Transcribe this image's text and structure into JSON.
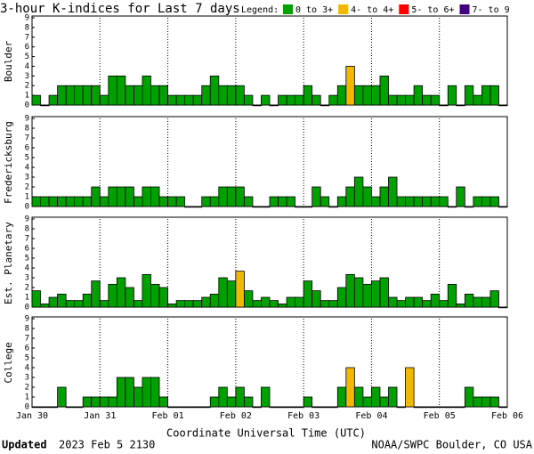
{
  "title": "3-hour K-indices for Last 7 days",
  "legend": {
    "title": "Legend:",
    "items": [
      {
        "label": "0 to 3+",
        "color": "#00a000"
      },
      {
        "label": "4- to 4+",
        "color": "#f0b800"
      },
      {
        "label": "5- to 6+",
        "color": "#ff0000"
      },
      {
        "label": "7- to 9",
        "color": "#400080"
      }
    ]
  },
  "x_axis": {
    "label": "Coordinate Universal Time (UTC)",
    "ticks": [
      "Jan 30",
      "Jan 31",
      "Feb 01",
      "Feb 02",
      "Feb 03",
      "Feb 04",
      "Feb 05",
      "Feb 06"
    ]
  },
  "footer": {
    "updated_label": "Updated",
    "updated_time": "2023 Feb  5 2130",
    "source": "NOAA/SWPC Boulder, CO USA"
  },
  "chart_data": [
    {
      "type": "bar",
      "ylabel": "Boulder",
      "ylim": [
        0,
        9
      ],
      "yticks": [
        0,
        1,
        2,
        3,
        4,
        5,
        6,
        7,
        8,
        9
      ],
      "values": [
        1,
        0,
        1,
        2,
        2,
        2,
        2,
        2,
        1,
        3,
        3,
        2,
        2,
        3,
        2,
        2,
        1,
        1,
        1,
        1,
        2,
        3,
        2,
        2,
        2,
        1,
        0,
        1,
        0,
        1,
        1,
        1,
        2,
        1,
        0,
        1,
        2,
        4,
        2,
        2,
        2,
        3,
        1,
        1,
        1,
        2,
        1,
        1,
        0,
        2,
        0,
        2,
        1,
        2,
        2,
        0
      ],
      "colors": [
        "#00a000",
        "#00a000",
        "#00a000",
        "#00a000",
        "#00a000",
        "#00a000",
        "#00a000",
        "#00a000",
        "#00a000",
        "#00a000",
        "#00a000",
        "#00a000",
        "#00a000",
        "#00a000",
        "#00a000",
        "#00a000",
        "#00a000",
        "#00a000",
        "#00a000",
        "#00a000",
        "#00a000",
        "#00a000",
        "#00a000",
        "#00a000",
        "#00a000",
        "#00a000",
        "#00a000",
        "#00a000",
        "#00a000",
        "#00a000",
        "#00a000",
        "#00a000",
        "#00a000",
        "#00a000",
        "#00a000",
        "#00a000",
        "#00a000",
        "#f0b800",
        "#00a000",
        "#00a000",
        "#00a000",
        "#00a000",
        "#00a000",
        "#00a000",
        "#00a000",
        "#00a000",
        "#00a000",
        "#00a000",
        "#00a000",
        "#00a000",
        "#00a000",
        "#00a000",
        "#00a000",
        "#00a000",
        "#00a000",
        "#00a000"
      ]
    },
    {
      "type": "bar",
      "ylabel": "Fredericksburg",
      "ylim": [
        0,
        9
      ],
      "yticks": [
        0,
        1,
        2,
        3,
        4,
        5,
        6,
        7,
        8,
        9
      ],
      "values": [
        1,
        1,
        1,
        1,
        1,
        1,
        1,
        2,
        1,
        2,
        2,
        2,
        1,
        2,
        2,
        1,
        1,
        1,
        0,
        0,
        1,
        1,
        2,
        2,
        2,
        1,
        0,
        0,
        1,
        1,
        1,
        0,
        0,
        2,
        1,
        0,
        1,
        2,
        3,
        2,
        1,
        2,
        3,
        1,
        1,
        1,
        1,
        1,
        1,
        0,
        2,
        0,
        1,
        1,
        1,
        0
      ],
      "colors": [
        "#00a000",
        "#00a000",
        "#00a000",
        "#00a000",
        "#00a000",
        "#00a000",
        "#00a000",
        "#00a000",
        "#00a000",
        "#00a000",
        "#00a000",
        "#00a000",
        "#00a000",
        "#00a000",
        "#00a000",
        "#00a000",
        "#00a000",
        "#00a000",
        "#00a000",
        "#00a000",
        "#00a000",
        "#00a000",
        "#00a000",
        "#00a000",
        "#00a000",
        "#00a000",
        "#00a000",
        "#00a000",
        "#00a000",
        "#00a000",
        "#00a000",
        "#00a000",
        "#00a000",
        "#00a000",
        "#00a000",
        "#00a000",
        "#00a000",
        "#00a000",
        "#00a000",
        "#00a000",
        "#00a000",
        "#00a000",
        "#00a000",
        "#00a000",
        "#00a000",
        "#00a000",
        "#00a000",
        "#00a000",
        "#00a000",
        "#00a000",
        "#00a000",
        "#00a000",
        "#00a000",
        "#00a000",
        "#00a000",
        "#00a000"
      ]
    },
    {
      "type": "bar",
      "ylabel": "Est. Planetary",
      "ylim": [
        0,
        9
      ],
      "yticks": [
        0,
        1,
        2,
        3,
        4,
        5,
        6,
        7,
        8,
        9
      ],
      "values": [
        1.67,
        0.33,
        1,
        1.33,
        0.67,
        0.67,
        1.33,
        2.67,
        0.67,
        2.33,
        3,
        2,
        0.67,
        3.33,
        2.33,
        2,
        0.33,
        0.67,
        0.67,
        0.67,
        1,
        1.33,
        3,
        2.67,
        3.67,
        1.67,
        0.67,
        1,
        0.67,
        0.33,
        1,
        1,
        2.67,
        1.67,
        0.67,
        0.67,
        2,
        3.33,
        3,
        2.33,
        2.67,
        3,
        1,
        0.67,
        1,
        1,
        0.67,
        1.33,
        0.67,
        2.33,
        0.33,
        1.33,
        1,
        1,
        1.67,
        0
      ],
      "colors": [
        "#00a000",
        "#00a000",
        "#00a000",
        "#00a000",
        "#00a000",
        "#00a000",
        "#00a000",
        "#00a000",
        "#00a000",
        "#00a000",
        "#00a000",
        "#00a000",
        "#00a000",
        "#00a000",
        "#00a000",
        "#00a000",
        "#00a000",
        "#00a000",
        "#00a000",
        "#00a000",
        "#00a000",
        "#00a000",
        "#00a000",
        "#00a000",
        "#f0b800",
        "#00a000",
        "#00a000",
        "#00a000",
        "#00a000",
        "#00a000",
        "#00a000",
        "#00a000",
        "#00a000",
        "#00a000",
        "#00a000",
        "#00a000",
        "#00a000",
        "#00a000",
        "#00a000",
        "#00a000",
        "#00a000",
        "#00a000",
        "#00a000",
        "#00a000",
        "#00a000",
        "#00a000",
        "#00a000",
        "#00a000",
        "#00a000",
        "#00a000",
        "#00a000",
        "#00a000",
        "#00a000",
        "#00a000",
        "#00a000",
        "#00a000"
      ]
    },
    {
      "type": "bar",
      "ylabel": "College",
      "ylim": [
        0,
        9
      ],
      "yticks": [
        0,
        1,
        2,
        3,
        4,
        5,
        6,
        7,
        8,
        9
      ],
      "values": [
        0,
        0,
        0,
        2,
        0,
        0,
        1,
        1,
        1,
        1,
        3,
        3,
        2,
        3,
        3,
        1,
        0,
        0,
        0,
        0,
        0,
        1,
        2,
        1,
        2,
        1,
        0,
        2,
        0,
        0,
        0,
        0,
        1,
        0,
        0,
        0,
        2,
        4,
        2,
        1,
        2,
        1,
        2,
        0,
        4,
        0,
        0,
        0,
        0,
        0,
        0,
        2,
        1,
        1,
        1,
        0
      ],
      "colors": [
        "#00a000",
        "#00a000",
        "#00a000",
        "#00a000",
        "#00a000",
        "#00a000",
        "#00a000",
        "#00a000",
        "#00a000",
        "#00a000",
        "#00a000",
        "#00a000",
        "#00a000",
        "#00a000",
        "#00a000",
        "#00a000",
        "#00a000",
        "#00a000",
        "#00a000",
        "#00a000",
        "#00a000",
        "#00a000",
        "#00a000",
        "#00a000",
        "#00a000",
        "#00a000",
        "#00a000",
        "#00a000",
        "#00a000",
        "#00a000",
        "#00a000",
        "#00a000",
        "#00a000",
        "#00a000",
        "#00a000",
        "#00a000",
        "#00a000",
        "#f0b800",
        "#00a000",
        "#00a000",
        "#00a000",
        "#00a000",
        "#00a000",
        "#00a000",
        "#f0b800",
        "#00a000",
        "#00a000",
        "#00a000",
        "#00a000",
        "#00a000",
        "#00a000",
        "#00a000",
        "#00a000",
        "#00a000",
        "#00a000",
        "#00a000"
      ]
    }
  ]
}
